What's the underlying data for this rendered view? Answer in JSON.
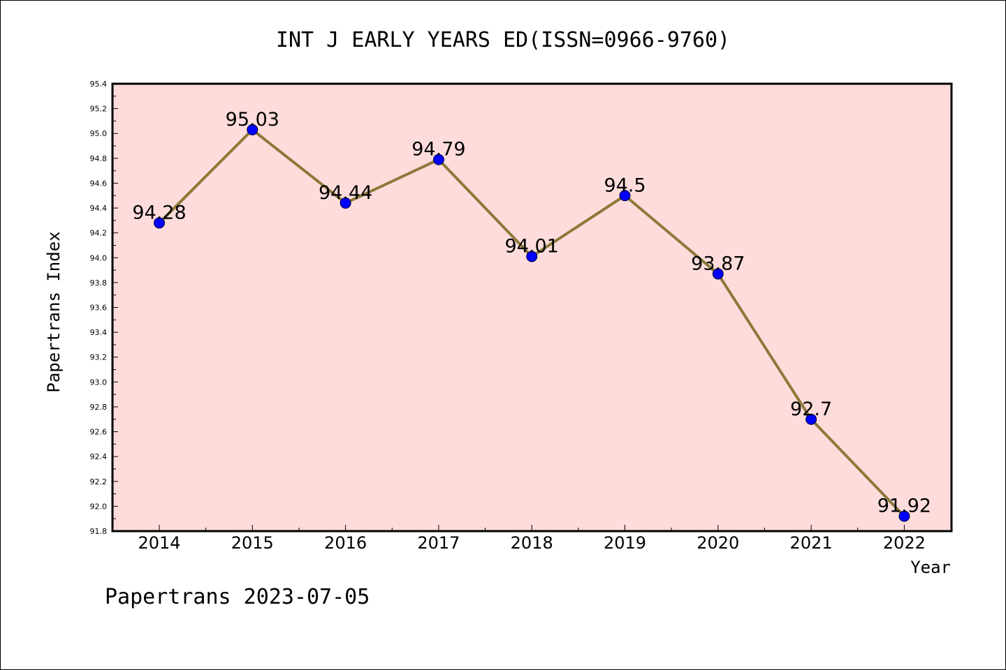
{
  "footer": "Papertrans 2023-07-05",
  "colors": {
    "plot_background": "#ffdcdc",
    "line": "#8b7a3a",
    "marker": "#0000ff",
    "axis": "#000000"
  },
  "chart_data": {
    "type": "line",
    "title": "INT J EARLY YEARS ED(ISSN=0966-9760)",
    "xlabel": "Year",
    "ylabel": "Papertrans Index",
    "ylim": [
      91.8,
      95.4
    ],
    "ytick_step": 0.2,
    "ytick_labels": [
      "91.8",
      "92.0",
      "92.2",
      "92.4",
      "92.6",
      "92.8",
      "93.0",
      "93.2",
      "93.4",
      "93.6",
      "93.8",
      "94.0",
      "94.2",
      "94.4",
      "94.6",
      "94.8",
      "95.0",
      "95.2",
      "95.4"
    ],
    "grid": false,
    "categories": [
      "2014",
      "2015",
      "2016",
      "2017",
      "2018",
      "2019",
      "2020",
      "2021",
      "2022"
    ],
    "series": [
      {
        "values": [
          94.28,
          95.03,
          94.44,
          94.79,
          94.01,
          94.5,
          93.87,
          92.7,
          91.92
        ],
        "data_labels": [
          "94.28",
          "95.03",
          "94.44",
          "94.79",
          "94.01",
          "94.5",
          "93.87",
          "92.7",
          "91.92"
        ]
      }
    ]
  }
}
